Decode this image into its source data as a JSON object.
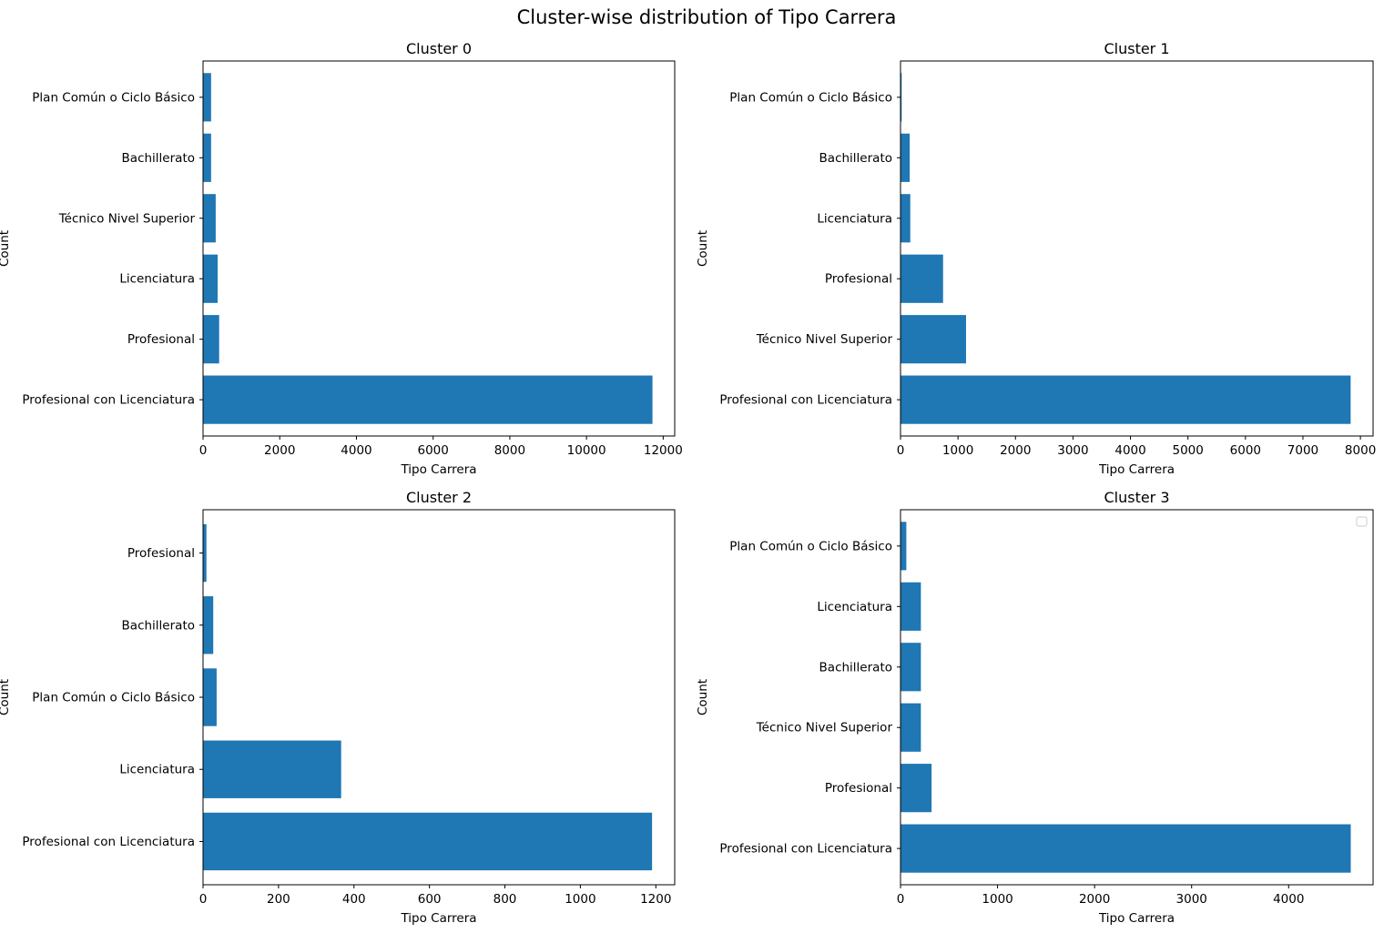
{
  "suptitle": "Cluster-wise distribution of Tipo Carrera",
  "chart_data": [
    {
      "type": "bar",
      "orientation": "horizontal",
      "title": "Cluster 0",
      "xlabel": "Tipo Carrera",
      "ylabel": "Count",
      "categories": [
        "Profesional con Licenciatura",
        "Profesional",
        "Licenciatura",
        "Técnico Nivel Superior",
        "Bachillerato",
        "Plan Común o Ciclo Básico"
      ],
      "values": [
        11720,
        420,
        380,
        330,
        210,
        210
      ],
      "xlim": [
        0,
        12300
      ],
      "xticks": [
        0,
        2000,
        4000,
        6000,
        8000,
        10000,
        12000
      ],
      "bar_color": "#1f77b4",
      "legend": false
    },
    {
      "type": "bar",
      "orientation": "horizontal",
      "title": "Cluster 1",
      "xlabel": "Tipo Carrera",
      "ylabel": "Count",
      "categories": [
        "Profesional con Licenciatura",
        "Técnico Nivel Superior",
        "Profesional",
        "Licenciatura",
        "Bachillerato",
        "Plan Común o Ciclo Básico"
      ],
      "values": [
        7830,
        1140,
        740,
        170,
        160,
        20
      ],
      "xlim": [
        0,
        8220
      ],
      "xticks": [
        0,
        1000,
        2000,
        3000,
        4000,
        5000,
        6000,
        7000,
        8000
      ],
      "bar_color": "#1f77b4",
      "legend": false
    },
    {
      "type": "bar",
      "orientation": "horizontal",
      "title": "Cluster 2",
      "xlabel": "Tipo Carrera",
      "ylabel": "Count",
      "categories": [
        "Profesional con Licenciatura",
        "Licenciatura",
        "Plan Común o Ciclo Básico",
        "Bachillerato",
        "Profesional"
      ],
      "values": [
        1190,
        366,
        36,
        27,
        9
      ],
      "xlim": [
        0,
        1250
      ],
      "xticks": [
        0,
        200,
        400,
        600,
        800,
        1000,
        1200
      ],
      "bar_color": "#1f77b4",
      "legend": false
    },
    {
      "type": "bar",
      "orientation": "horizontal",
      "title": "Cluster 3",
      "xlabel": "Tipo Carrera",
      "ylabel": "Count",
      "categories": [
        "Profesional con Licenciatura",
        "Profesional",
        "Técnico Nivel Superior",
        "Bachillerato",
        "Licenciatura",
        "Plan Común o Ciclo Básico"
      ],
      "values": [
        4640,
        320,
        210,
        210,
        210,
        60
      ],
      "xlim": [
        0,
        4870
      ],
      "xticks": [
        0,
        1000,
        2000,
        3000,
        4000
      ],
      "bar_color": "#1f77b4",
      "legend": true
    }
  ]
}
